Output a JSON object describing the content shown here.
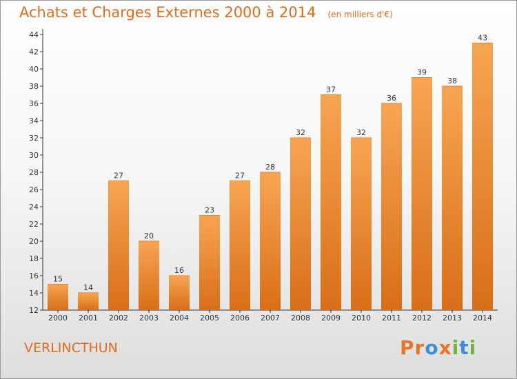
{
  "chart_data": {
    "type": "bar",
    "title": "Achats et Charges Externes 2000 à 2014",
    "unit_label": "(en milliers d'€)",
    "categories": [
      "2000",
      "2001",
      "2002",
      "2003",
      "2004",
      "2005",
      "2006",
      "2007",
      "2008",
      "2009",
      "2010",
      "2011",
      "2012",
      "2013",
      "2014"
    ],
    "values": [
      15,
      14,
      27,
      20,
      16,
      23,
      27,
      28,
      32,
      37,
      32,
      36,
      39,
      38,
      43
    ],
    "ylim": [
      12,
      44
    ],
    "yticks": [
      12,
      14,
      16,
      18,
      20,
      22,
      24,
      26,
      28,
      30,
      32,
      34,
      36,
      38,
      40,
      42,
      44
    ],
    "grid": false,
    "bar_color_top": "#f7a552",
    "bar_color_bottom": "#d96e18"
  },
  "commune": "VERLINCTHUN",
  "logo": {
    "text": "Proxiti",
    "letter_colors": [
      "#e8742a",
      "#e8742a",
      "#3a90d0",
      "#e8742a",
      "#72b53a",
      "#3a90d0",
      "#72b53a"
    ]
  },
  "title_color": "#e06a1a"
}
